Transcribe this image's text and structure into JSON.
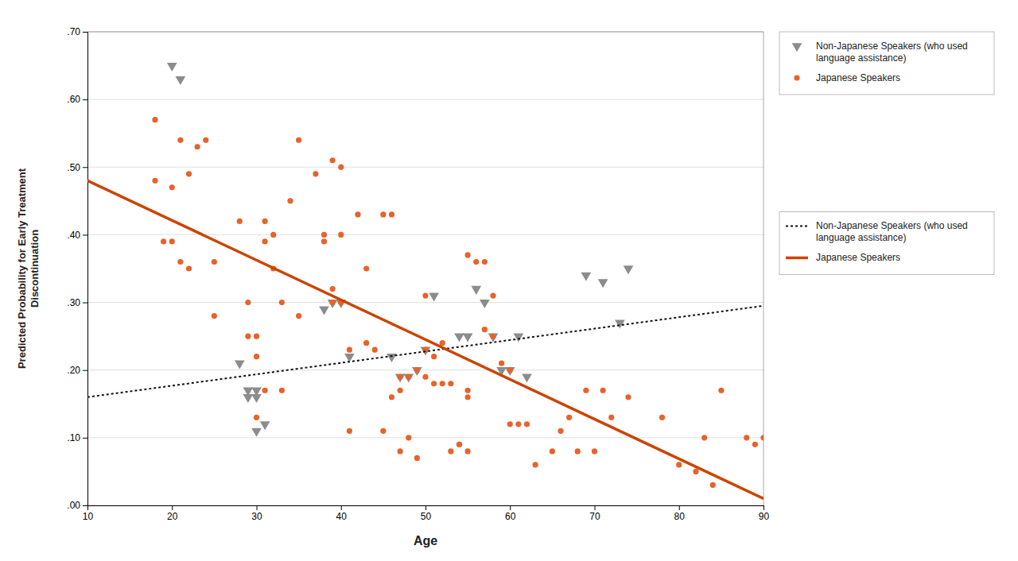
{
  "chart_data": {
    "type": "scatter",
    "x_label": "Age",
    "y_label": "Predicted Probability for Early Treatment\nDiscontinuation",
    "xlim": [
      10,
      90
    ],
    "ylim": [
      0.0,
      0.7
    ],
    "xticks": [
      10,
      20,
      30,
      40,
      50,
      60,
      70,
      80,
      90
    ],
    "yticks": [
      {
        "value": 0.0,
        "label": ".00"
      },
      {
        "value": 0.1,
        "label": ".10"
      },
      {
        "value": 0.2,
        "label": ".20"
      },
      {
        "value": 0.3,
        "label": ".30"
      },
      {
        "value": 0.4,
        "label": ".40"
      },
      {
        "value": 0.5,
        "label": ".50"
      },
      {
        "value": 0.6,
        "label": ".60"
      },
      {
        "value": 0.7,
        "label": ".70"
      }
    ],
    "grid": "y",
    "legend": "right",
    "series": [
      {
        "name": "Non-Japanese Speakers (who used\nlanguage assistance)",
        "type": "scatter",
        "marker": "triangle-down",
        "color": "#8C8C8C",
        "x": [
          20,
          21,
          28,
          29,
          29,
          30,
          30,
          30,
          31,
          38,
          39,
          40,
          41,
          46,
          47,
          48,
          49,
          50,
          51,
          54,
          55,
          56,
          57,
          58,
          59,
          60,
          61,
          62,
          69,
          71,
          73,
          74
        ],
        "values": [
          0.65,
          0.63,
          0.21,
          0.17,
          0.16,
          0.11,
          0.17,
          0.16,
          0.12,
          0.29,
          0.3,
          0.3,
          0.22,
          0.22,
          0.19,
          0.19,
          0.2,
          0.23,
          0.31,
          0.25,
          0.25,
          0.32,
          0.3,
          0.25,
          0.2,
          0.2,
          0.25,
          0.19,
          0.34,
          0.33,
          0.27,
          0.35
        ]
      },
      {
        "name": "Japanese Speakers",
        "type": "scatter",
        "marker": "circle",
        "color": "#E8622A",
        "x": [
          18,
          18,
          19,
          20,
          20,
          21,
          21,
          22,
          22,
          23,
          24,
          25,
          25,
          28,
          29,
          29,
          30,
          30,
          30,
          31,
          31,
          31,
          32,
          32,
          33,
          33,
          34,
          35,
          35,
          37,
          38,
          38,
          39,
          39,
          39,
          40,
          40,
          40,
          41,
          41,
          42,
          43,
          43,
          44,
          45,
          45,
          46,
          46,
          47,
          47,
          47,
          48,
          48,
          49,
          49,
          50,
          50,
          50,
          51,
          51,
          52,
          52,
          53,
          53,
          54,
          54,
          55,
          55,
          55,
          55,
          56,
          57,
          57,
          58,
          58,
          59,
          60,
          60,
          61,
          62,
          63,
          65,
          66,
          67,
          68,
          69,
          70,
          71,
          72,
          74,
          78,
          80,
          82,
          83,
          84,
          85,
          88,
          89,
          90
        ],
        "values": [
          0.57,
          0.48,
          0.39,
          0.47,
          0.39,
          0.54,
          0.36,
          0.49,
          0.35,
          0.53,
          0.54,
          0.36,
          0.28,
          0.42,
          0.3,
          0.25,
          0.25,
          0.22,
          0.13,
          0.42,
          0.39,
          0.17,
          0.4,
          0.35,
          0.17,
          0.3,
          0.45,
          0.54,
          0.28,
          0.49,
          0.4,
          0.39,
          0.3,
          0.51,
          0.32,
          0.5,
          0.4,
          0.3,
          0.23,
          0.11,
          0.43,
          0.35,
          0.24,
          0.23,
          0.43,
          0.11,
          0.16,
          0.43,
          0.19,
          0.08,
          0.17,
          0.19,
          0.1,
          0.2,
          0.07,
          0.31,
          0.23,
          0.19,
          0.22,
          0.18,
          0.24,
          0.18,
          0.18,
          0.08,
          0.09,
          0.09,
          0.37,
          0.17,
          0.16,
          0.08,
          0.36,
          0.36,
          0.26,
          0.31,
          0.25,
          0.21,
          0.2,
          0.12,
          0.12,
          0.12,
          0.06,
          0.08,
          0.11,
          0.13,
          0.08,
          0.17,
          0.08,
          0.17,
          0.13,
          0.16,
          0.13,
          0.06,
          0.05,
          0.1,
          0.03,
          0.17,
          0.1,
          0.09,
          0.1
        ]
      },
      {
        "name": "Non-Japanese Speakers (who used\nlanguage assistance)",
        "type": "line",
        "line_style": "dotted",
        "color": "#111111",
        "x": [
          10,
          90
        ],
        "values": [
          0.16,
          0.295
        ]
      },
      {
        "name": "Japanese Speakers",
        "type": "line",
        "line_style": "solid",
        "color": "#CC4400",
        "x": [
          10,
          90
        ],
        "values": [
          0.48,
          0.01
        ]
      }
    ]
  }
}
